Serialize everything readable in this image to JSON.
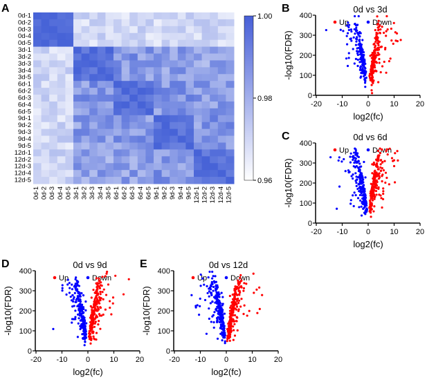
{
  "colors": {
    "up": "#ff0000",
    "down": "#0000ff",
    "axis": "#000000",
    "heatmap_low": "#ffffff",
    "heatmap_high": "#3b4cc0"
  },
  "panels": {
    "A": {
      "label": "A",
      "type": "heatmap",
      "labels": [
        "0d-1",
        "0d-2",
        "0d-3",
        "0d-4",
        "0d-5",
        "3d-1",
        "3d-2",
        "3d-3",
        "3d-4",
        "3d-5",
        "6d-1",
        "6d-2",
        "6d-3",
        "6d-4",
        "6d-5",
        "9d-1",
        "9d-2",
        "9d-3",
        "9d-4",
        "9d-5",
        "12d-1",
        "12d-2",
        "12d-3",
        "12d-4",
        "12d-5"
      ],
      "colorbar": {
        "values": [
          "1.00",
          "0.98",
          "0.96"
        ],
        "low": 0.95,
        "high": 1.0
      },
      "n": 25
    },
    "B": {
      "label": "B",
      "type": "volcano",
      "title": "0d vs 3d",
      "xlabel": "log2(fc)",
      "ylabel": "-log10(FDR)",
      "xlim": [
        -20,
        20
      ],
      "xticks": [
        -20,
        -10,
        0,
        10,
        20
      ],
      "ylim": [
        0,
        400
      ],
      "yticks": [
        0,
        100,
        200,
        300,
        400
      ],
      "legend": {
        "up": "Up",
        "down": "Down"
      },
      "n_up": 180,
      "n_down": 180
    },
    "C": {
      "label": "C",
      "type": "volcano",
      "title": "0d vs 6d",
      "xlabel": "log2(fc)",
      "ylabel": "-log10(FDR)",
      "xlim": [
        -20,
        20
      ],
      "xticks": [
        -20,
        -10,
        0,
        10,
        20
      ],
      "ylim": [
        0,
        400
      ],
      "yticks": [
        0,
        100,
        200,
        300,
        400
      ],
      "legend": {
        "up": "Up",
        "down": "Down"
      },
      "n_up": 220,
      "n_down": 220
    },
    "D": {
      "label": "D",
      "type": "volcano",
      "title": "0d vs 9d",
      "xlabel": "log2(fc)",
      "ylabel": "-log10(FDR)",
      "xlim": [
        -20,
        20
      ],
      "xticks": [
        -20,
        -10,
        0,
        10,
        20
      ],
      "ylim": [
        0,
        400
      ],
      "yticks": [
        0,
        100,
        200,
        300,
        400
      ],
      "legend": {
        "up": "Up",
        "down": "Down"
      },
      "n_up": 230,
      "n_down": 230
    },
    "E": {
      "label": "E",
      "type": "volcano",
      "title": "0d vs 12d",
      "xlabel": "log2(fc)",
      "ylabel": "-log10(FDR)",
      "xlim": [
        -20,
        20
      ],
      "xticks": [
        -20,
        -10,
        0,
        10,
        20
      ],
      "ylim": [
        0,
        400
      ],
      "yticks": [
        0,
        100,
        200,
        300,
        400
      ],
      "legend": {
        "up": "Up",
        "down": "Down"
      },
      "n_up": 250,
      "n_down": 250
    }
  },
  "style": {
    "marker_size": 1.6,
    "axis_width": 1.5,
    "tick_len": 4,
    "font_tick": 11,
    "font_axis": 13,
    "font_title": 13,
    "font_panel": 16
  }
}
